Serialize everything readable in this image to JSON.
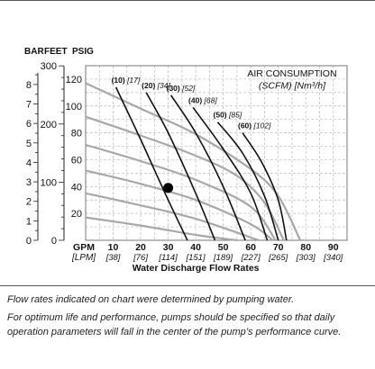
{
  "chart_data": {
    "type": "line",
    "axis_headers": {
      "bar": "BAR",
      "feet": "FEET",
      "psig": "PSIG"
    },
    "x_units": {
      "gpm": "GPM",
      "lpm": "[LPM]"
    },
    "xlabel": "Water Discharge Flow Rates",
    "x_ticks": [
      {
        "gpm": "10",
        "lpm": "[38]"
      },
      {
        "gpm": "20",
        "lpm": "[76]"
      },
      {
        "gpm": "30",
        "lpm": "[114]"
      },
      {
        "gpm": "40",
        "lpm": "[151]"
      },
      {
        "gpm": "50",
        "lpm": "[189]"
      },
      {
        "gpm": "60",
        "lpm": "[227]"
      },
      {
        "gpm": "70",
        "lpm": "[265]"
      },
      {
        "gpm": "80",
        "lpm": "[303]"
      },
      {
        "gpm": "90",
        "lpm": "[340]"
      }
    ],
    "xlim": [
      0,
      95
    ],
    "y_psig_ticks": [
      "20",
      "40",
      "60",
      "80",
      "100",
      "120"
    ],
    "ylim_psig": [
      0,
      130
    ],
    "y_feet_ticks": [
      "0",
      "100",
      "200",
      "300"
    ],
    "y_bar_ticks": [
      "0",
      "1",
      "2",
      "3",
      "4",
      "5",
      "6",
      "7",
      "8"
    ],
    "air_consumption_title": "AIR CONSUMPTION",
    "air_consumption_units": "(SCFM) [Nm³/h]",
    "colors": {
      "grid": "#bbbbbb",
      "pressure_curve": "#a8a8a8",
      "air_curve": "#111111"
    },
    "pressure_curves": [
      {
        "points": [
          [
            0,
            117
          ],
          [
            20,
            98
          ],
          [
            40,
            79
          ],
          [
            60,
            53
          ],
          [
            70,
            33
          ],
          [
            78,
            0
          ]
        ]
      },
      {
        "points": [
          [
            0,
            92
          ],
          [
            20,
            78
          ],
          [
            40,
            63
          ],
          [
            55,
            48
          ],
          [
            65,
            28
          ],
          [
            72,
            0
          ]
        ]
      },
      {
        "points": [
          [
            0,
            71
          ],
          [
            20,
            59
          ],
          [
            40,
            45
          ],
          [
            60,
            25
          ],
          [
            69,
            0
          ]
        ]
      },
      {
        "points": [
          [
            0,
            52
          ],
          [
            20,
            42
          ],
          [
            40,
            30
          ],
          [
            60,
            12
          ],
          [
            68,
            0
          ]
        ]
      },
      {
        "points": [
          [
            0,
            35
          ],
          [
            20,
            26
          ],
          [
            40,
            16
          ],
          [
            63,
            0
          ]
        ]
      },
      {
        "points": [
          [
            0,
            17
          ],
          [
            20,
            11
          ],
          [
            40,
            4
          ],
          [
            55,
            0
          ]
        ]
      }
    ],
    "air_curves": [
      {
        "label": "(10)",
        "metric": "[17]",
        "points": [
          [
            11,
            114
          ],
          [
            20,
            75
          ],
          [
            30,
            30
          ],
          [
            37,
            0
          ]
        ]
      },
      {
        "label": "(20)",
        "metric": "[34]",
        "points": [
          [
            22,
            110
          ],
          [
            30,
            80
          ],
          [
            40,
            35
          ],
          [
            47,
            0
          ]
        ]
      },
      {
        "label": "(30)",
        "metric": "[52]",
        "points": [
          [
            31,
            108
          ],
          [
            40,
            80
          ],
          [
            50,
            40
          ],
          [
            58,
            0
          ]
        ]
      },
      {
        "label": "(40)",
        "metric": "[68]",
        "points": [
          [
            39,
            99
          ],
          [
            50,
            68
          ],
          [
            60,
            35
          ],
          [
            66,
            0
          ]
        ]
      },
      {
        "label": "(50)",
        "metric": "[85]",
        "points": [
          [
            48,
            88
          ],
          [
            57,
            65
          ],
          [
            65,
            33
          ],
          [
            70,
            0
          ]
        ]
      },
      {
        "label": "(60)",
        "metric": "[102]",
        "points": [
          [
            57,
            80
          ],
          [
            64,
            58
          ],
          [
            70,
            30
          ],
          [
            73,
            0
          ]
        ]
      }
    ],
    "highlight_point": {
      "x": 30,
      "y": 39
    }
  },
  "notes": [
    "Flow rates indicated on chart were determined by pumping water.",
    "For optimum life and performance, pumps should be specified so that daily operation parameters will fall in the center of the pump’s performance curve."
  ]
}
